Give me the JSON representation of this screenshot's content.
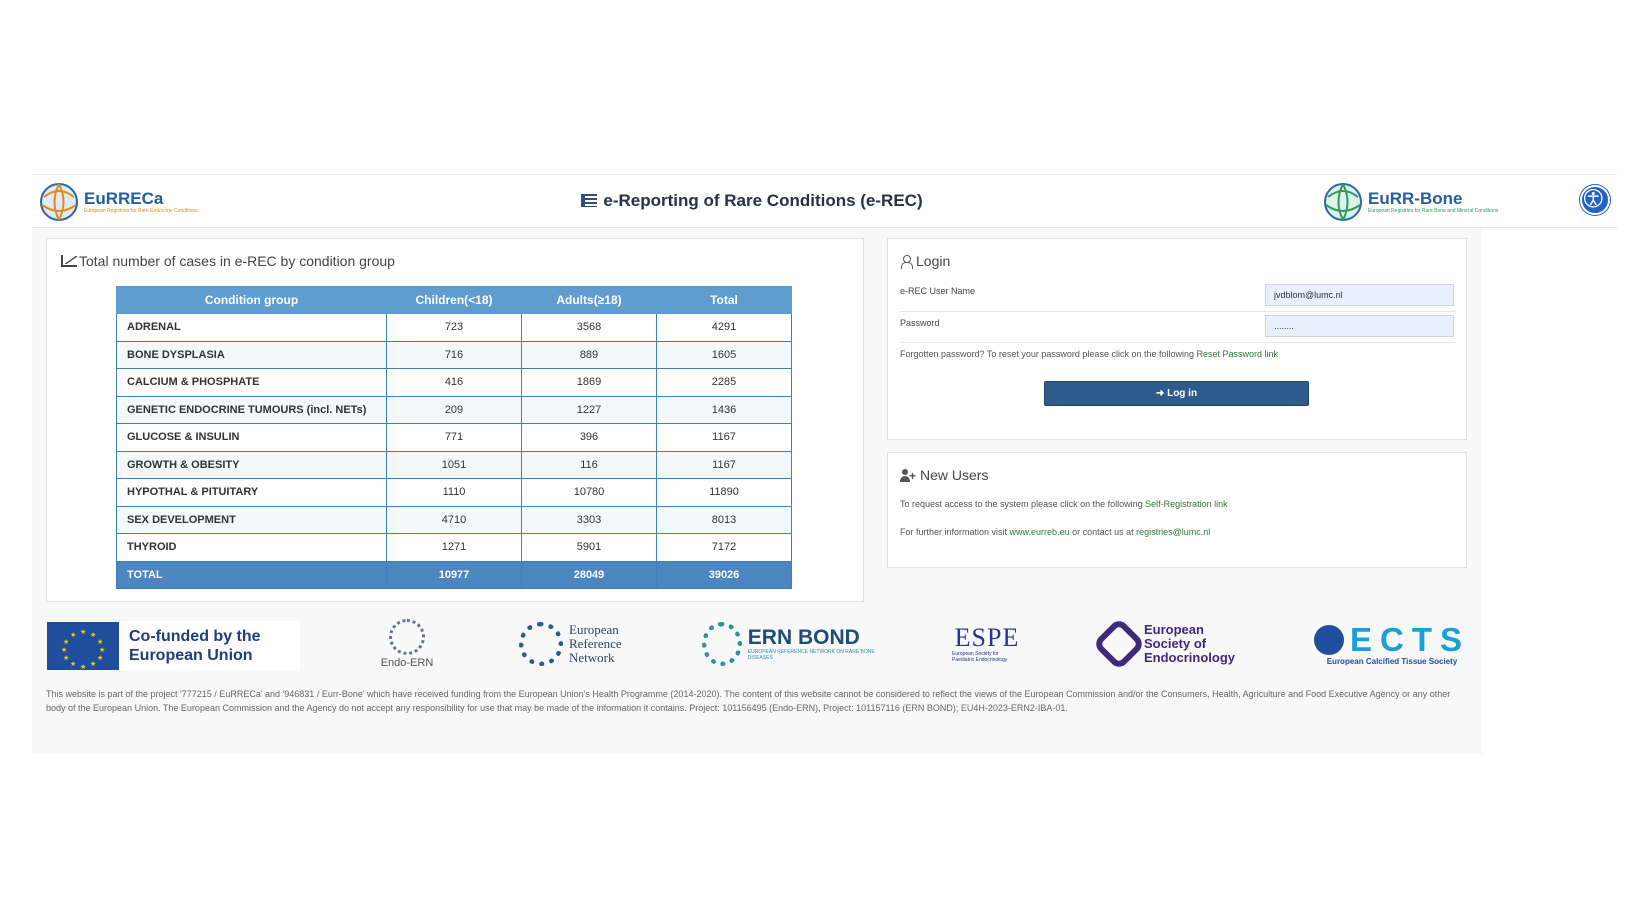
{
  "header": {
    "title": "e-Reporting of Rare Conditions (e-REC)",
    "left_logo": {
      "name": "EuRRECa",
      "sub": "European Registries for Rare Endocrine Conditions"
    },
    "right_logo": {
      "name": "EuRR-Bone",
      "sub": "European Registries for Rare Bone and Mineral Conditions"
    },
    "accessibility_icon": "accessibility-icon"
  },
  "stats": {
    "title": "Total number of cases in e-REC by condition group",
    "icon": "line-chart-icon",
    "columns": [
      "Condition group",
      "Children(<18)",
      "Adults(≥18)",
      "Total"
    ],
    "rows": [
      [
        "ADRENAL",
        "723",
        "3568",
        "4291"
      ],
      [
        "BONE DYSPLASIA",
        "716",
        "889",
        "1605"
      ],
      [
        "CALCIUM & PHOSPHATE",
        "416",
        "1869",
        "2285"
      ],
      [
        "GENETIC ENDOCRINE TUMOURS (incl. NETs)",
        "209",
        "1227",
        "1436"
      ],
      [
        "GLUCOSE & INSULIN",
        "771",
        "396",
        "1167"
      ],
      [
        "GROWTH & OBESITY",
        "1051",
        "116",
        "1167"
      ],
      [
        "HYPOTHAL & PITUITARY",
        "1110",
        "10780",
        "11890"
      ],
      [
        "SEX DEVELOPMENT",
        "4710",
        "3303",
        "8013"
      ],
      [
        "THYROID",
        "1271",
        "5901",
        "7172"
      ]
    ],
    "total": [
      "TOTAL",
      "10977",
      "28049",
      "39026"
    ]
  },
  "login": {
    "title": "Login",
    "username_label": "e-REC User Name",
    "username_value": "jvdblom@lumc.nl",
    "password_label": "Password",
    "password_value": "........",
    "forgot_text": "Forgotten password? To reset your password please click on the following ",
    "forgot_link": "Reset Password link",
    "button_label": "➜ Log in"
  },
  "new_users": {
    "title": "New Users",
    "request_text": "To request access to the system please click on the following ",
    "request_link": "Self-Registration link",
    "info_text_1": "For further information visit ",
    "info_link_1": "www.eurreb.eu",
    "info_text_2": " or contact us at ",
    "info_link_2": "registries@lumc.nl"
  },
  "sponsors": {
    "eu": "Co-funded by the European Union",
    "endo_ern": "Endo-ERN",
    "ern": "European Reference Network",
    "ern_bond": "ERN BOND",
    "ern_bond_sub": "EUROPEAN REFERENCE NETWORK ON RARE BONE DISEASES",
    "espe": "ESPE",
    "espe_sub": "European Society for Paediatric Endocrinology",
    "ese": "European Society of Endocrinology",
    "ects": "ECTS",
    "ects_sub": "European Calcified Tissue Society"
  },
  "disclaimer": "This website is part of the project '777215 / EuRRECa' and '946831 / Eurr-Bone' which have received funding from the European Union's Health Programme (2014-2020). The content of this website cannot be considered to reflect the views of the European Commission and/or the Consumers, Health, Agriculture and Food Executive Agency or any other body of the European Union. The European Commission and the Agency do not accept any responsibility for use that may be made of the information it contains. Project: 101156495 (Endo-ERN), Project: 101157116 (ERN BOND); EU4H-2023-ERN2-IBA-01.",
  "colors": {
    "table_header": "#5f9cd0",
    "table_total": "#4b86be",
    "login_button": "#2e5b8c",
    "link": "#2c7a3a"
  }
}
